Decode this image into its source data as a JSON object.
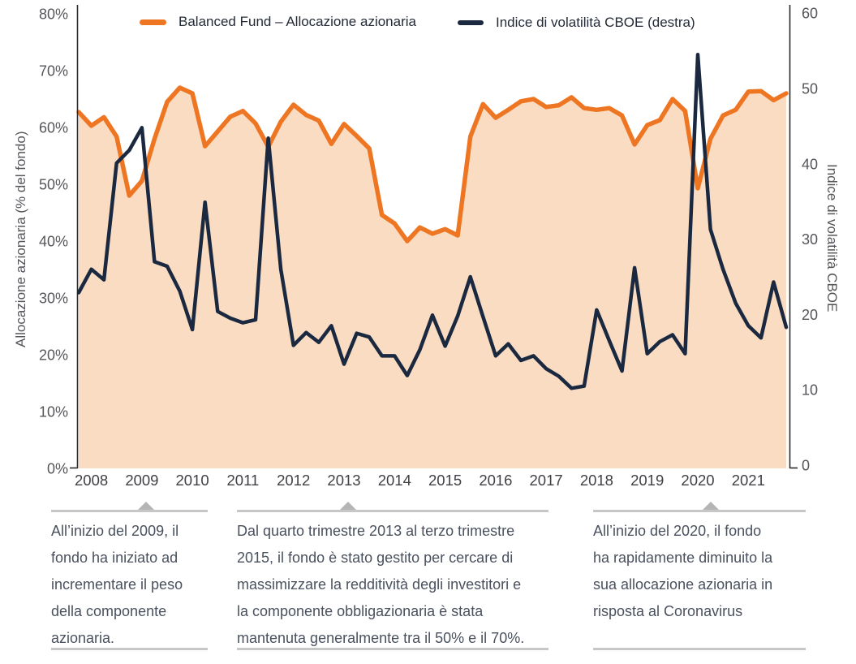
{
  "legend": {
    "items": [
      {
        "label": "Balanced Fund – Allocazione azionaria",
        "color": "#ee7623"
      },
      {
        "label": "Indice di volatilità CBOE (destra)",
        "color": "#1b2940"
      }
    ]
  },
  "chart_data": {
    "type": "area+line, dual axis, quarterly from 2008-Q1 to 2022-Q1",
    "title": "",
    "ylabel_left": "Allocazione azionaria (% del fondo)",
    "ylabel_right": "Indice di volatilità CBOE",
    "ylim_left": [
      0,
      80
    ],
    "ylim_right": [
      0,
      60
    ],
    "grid": false,
    "legend_position": "top inside",
    "xticklabels": [
      "2008",
      "2009",
      "2010",
      "2011",
      "2012",
      "2013",
      "2014",
      "2015",
      "2016",
      "2017",
      "2018",
      "2019",
      "2020",
      "2021"
    ],
    "yticks_left": [
      {
        "v": 0,
        "label": "0%"
      },
      {
        "v": 10,
        "label": "10%"
      },
      {
        "v": 20,
        "label": "20%"
      },
      {
        "v": 30,
        "label": "30%"
      },
      {
        "v": 40,
        "label": "40%"
      },
      {
        "v": 50,
        "label": "50%"
      },
      {
        "v": 60,
        "label": "60%"
      },
      {
        "v": 70,
        "label": "70%"
      },
      {
        "v": 80,
        "label": "80%"
      }
    ],
    "yticks_right": [
      {
        "v": 0,
        "label": "0"
      },
      {
        "v": 10,
        "label": "10"
      },
      {
        "v": 20,
        "label": "20"
      },
      {
        "v": 30,
        "label": "30"
      },
      {
        "v": 40,
        "label": "40"
      },
      {
        "v": 50,
        "label": "50"
      },
      {
        "v": 60,
        "label": "60"
      }
    ],
    "series": [
      {
        "name": "Balanced Fund – Allocazione azionaria",
        "axis": "left",
        "unit": "%",
        "color": "#ee7623",
        "fill": "#f9dcc2",
        "values": [
          62.7,
          60.3,
          61.8,
          58.4,
          48.0,
          50.6,
          58.0,
          64.5,
          67.0,
          66.0,
          56.7,
          59.3,
          61.9,
          62.9,
          60.7,
          56.6,
          61.0,
          64.0,
          62.2,
          61.2,
          57.1,
          60.6,
          58.5,
          56.3,
          44.6,
          43.1,
          40.0,
          42.4,
          41.3,
          42.1,
          41.0,
          58.4,
          64.1,
          61.7,
          63.1,
          64.6,
          65.0,
          63.6,
          63.9,
          65.3,
          63.4,
          63.1,
          63.4,
          62.1,
          57.0,
          60.4,
          61.3,
          65.0,
          62.9,
          49.3,
          58.0,
          62.1,
          63.1,
          66.3,
          66.4,
          64.8,
          66.0
        ]
      },
      {
        "name": "Indice di volatilità CBOE (destra)",
        "axis": "right",
        "unit": "index",
        "color": "#1b2940",
        "values": [
          22.9,
          26.0,
          24.6,
          40.1,
          41.8,
          44.8,
          27.0,
          26.4,
          23.1,
          18.0,
          34.9,
          20.4,
          19.5,
          18.9,
          19.3,
          43.4,
          26.0,
          15.9,
          17.6,
          16.3,
          18.5,
          13.4,
          17.5,
          17.0,
          14.5,
          14.5,
          11.9,
          15.3,
          19.9,
          15.8,
          19.8,
          25.0,
          19.7,
          14.5,
          16.1,
          13.9,
          14.5,
          12.8,
          11.8,
          10.2,
          10.5,
          20.6,
          16.5,
          12.5,
          26.2,
          14.8,
          16.4,
          17.3,
          14.8,
          54.5,
          31.3,
          26.0,
          21.5,
          18.5,
          16.9,
          24.3,
          18.3
        ]
      }
    ]
  },
  "annotations": {
    "blocks": [
      {
        "id": "2009",
        "lines": [
          "All’inizio del 2009, il",
          "fondo ha iniziato ad",
          "incrementare il peso",
          "della componente",
          "azionaria."
        ]
      },
      {
        "id": "2013",
        "lines": [
          "Dal quarto trimestre 2013 al terzo trimestre",
          "2015, il fondo è stato gestito per cercare di",
          "massimizzare la redditività degli investitori e",
          "la componente obbligazionaria è stata",
          "mantenuta generalmente tra il 50% e il 70%."
        ]
      },
      {
        "id": "2020",
        "lines": [
          "All’inizio del 2020, il fondo",
          "ha rapidamente diminuito la",
          "sua allocazione azionaria in",
          "risposta al Coronavirus"
        ]
      }
    ]
  },
  "colors": {
    "orange_line": "#ee7623",
    "area_fill": "#f9dcc2",
    "navy_line": "#1b2940",
    "tick_text": "#55565a",
    "year_text": "#414045",
    "annotation_text": "#4a515e",
    "rule_gray": "#c7c7c7",
    "triangle_gray": "#b5b5b5",
    "spine": "#2a2a2e"
  }
}
